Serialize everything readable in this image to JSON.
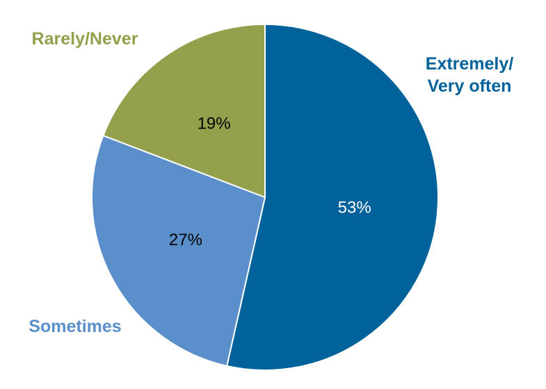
{
  "chart_data": {
    "type": "pie",
    "title": "",
    "slices": [
      {
        "label": "Extremely/ Very often",
        "label_lines": [
          "Extremely/",
          "Very often"
        ],
        "value": 53,
        "value_label": "53%",
        "color": "#00629b",
        "value_label_color": "#ffffff",
        "label_color": "#00629b"
      },
      {
        "label": "Sometimes",
        "label_lines": [
          "Sometimes"
        ],
        "value": 27,
        "value_label": "27%",
        "color": "#5b8fcb",
        "value_label_color": "#000000",
        "label_color": "#5b8fcb"
      },
      {
        "label": "Rarely/Never",
        "label_lines": [
          "Rarely/Never"
        ],
        "value": 19,
        "value_label": "19%",
        "color": "#94a04c",
        "value_label_color": "#000000",
        "label_color": "#94a04c"
      }
    ],
    "start_angle": "12 o'clock",
    "direction": "clockwise",
    "legend": "none"
  }
}
